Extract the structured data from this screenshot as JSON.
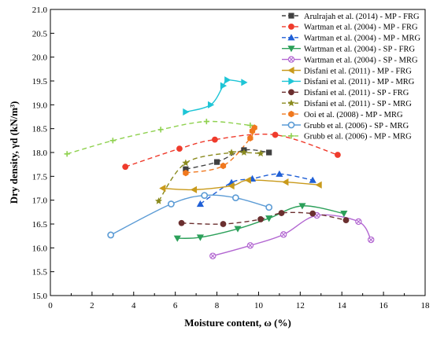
{
  "chart_data": {
    "type": "scatter",
    "xlabel": "Moisture content, ω (%)",
    "ylabel": "Dry density, γd (kN/m³)",
    "xlim": [
      0,
      18
    ],
    "ylim": [
      15.0,
      21.0
    ],
    "xticks": [
      "0",
      "2",
      "4",
      "6",
      "8",
      "10",
      "12",
      "14",
      "16",
      "18"
    ],
    "yticks": [
      "15.0",
      "15.5",
      "16.0",
      "16.5",
      "17.0",
      "17.5",
      "18.0",
      "18.5",
      "19.0",
      "19.5",
      "20.0",
      "20.5",
      "21.0"
    ],
    "legend_position": "top-right",
    "grid": false,
    "series": [
      {
        "name": "Arulrajah et al. (2014) - MP - FRG",
        "color": "#404040",
        "marker": "square",
        "dash": "dash",
        "x": [
          6.5,
          8.0,
          9.3,
          10.5
        ],
        "y": [
          17.65,
          17.8,
          18.05,
          18.0
        ]
      },
      {
        "name": "Wartman et al. (2004) - MP - FRG",
        "color": "#ef3b2c",
        "marker": "circle",
        "dash": "dash",
        "x": [
          3.6,
          6.2,
          7.9,
          10.8,
          13.8
        ],
        "y": [
          17.7,
          18.08,
          18.27,
          18.37,
          17.95
        ]
      },
      {
        "name": "Wartman et al. (2004) - MP - MRG",
        "color": "#1f5fd6",
        "marker": "triangle-up",
        "dash": "dash",
        "x": [
          7.2,
          8.7,
          9.7,
          11.0,
          12.6
        ],
        "y": [
          16.92,
          17.37,
          17.45,
          17.55,
          17.42
        ]
      },
      {
        "name": "Wartman et al. (2004) - SP - FRG",
        "color": "#2ca05a",
        "marker": "triangle-down",
        "dash": "solid",
        "x": [
          6.1,
          7.2,
          9.0,
          10.5,
          12.1,
          14.1
        ],
        "y": [
          16.2,
          16.22,
          16.4,
          16.62,
          16.88,
          16.72
        ]
      },
      {
        "name": "Wartman et al. (2004) - SP - MRG",
        "color": "#b266d1",
        "marker": "cross-circle",
        "dash": "solid",
        "x": [
          7.8,
          9.6,
          11.2,
          12.8,
          14.8,
          15.4
        ],
        "y": [
          15.83,
          16.05,
          16.28,
          16.68,
          16.55,
          16.17
        ]
      },
      {
        "name": "Disfani et al. (2011) - MP -  FRG",
        "color": "#c99a1b",
        "marker": "triangle-left",
        "dash": "solid",
        "x": [
          5.4,
          6.9,
          8.7,
          9.5,
          11.3,
          12.9
        ],
        "y": [
          17.25,
          17.22,
          17.3,
          17.42,
          17.38,
          17.32
        ]
      },
      {
        "name": "Disfani et al. (2011) - MP -  MRG",
        "color": "#1ec5d6",
        "marker": "triangle-right",
        "dash": "solid",
        "x": [
          6.5,
          7.7,
          8.3,
          8.5,
          9.3
        ],
        "y": [
          18.85,
          19.0,
          19.4,
          19.52,
          19.47
        ]
      },
      {
        "name": "Disfani et al. (2011) - SP - FRG",
        "color": "#6b2f2f",
        "marker": "circle",
        "dash": "dash",
        "x": [
          6.3,
          8.3,
          10.1,
          11.1,
          12.6,
          14.2
        ],
        "y": [
          16.52,
          16.5,
          16.6,
          16.73,
          16.72,
          16.58
        ]
      },
      {
        "name": "Disfani et al. (2011) - SP - MRG",
        "color": "#8a8a1e",
        "marker": "star",
        "dash": "dash",
        "x": [
          5.2,
          6.5,
          8.7,
          9.3,
          10.1
        ],
        "y": [
          16.98,
          17.78,
          18.0,
          18.0,
          17.98
        ]
      },
      {
        "name": "Ooi et al. (2008) - MP - MRG",
        "color": "#f0781e",
        "marker": "hexagon",
        "dash": "dash",
        "x": [
          6.5,
          8.3,
          9.6,
          9.7,
          9.8
        ],
        "y": [
          17.57,
          17.72,
          18.3,
          18.45,
          18.52
        ]
      },
      {
        "name": "Grubb et al. (2006) - SP - MRG",
        "color": "#5b9bd5",
        "marker": "circle-ring",
        "dash": "solid",
        "x": [
          2.9,
          5.8,
          7.4,
          8.9,
          10.5
        ],
        "y": [
          16.27,
          16.92,
          17.1,
          17.05,
          16.85
        ]
      },
      {
        "name": "Grubb et al. (2006) - MP - MRG",
        "color": "#8fd14f",
        "marker": "plus",
        "dash": "dash",
        "x": [
          0.8,
          3.0,
          5.3,
          7.5,
          9.6
        ],
        "y": [
          17.97,
          18.25,
          18.48,
          18.65,
          18.57
        ]
      }
    ]
  }
}
